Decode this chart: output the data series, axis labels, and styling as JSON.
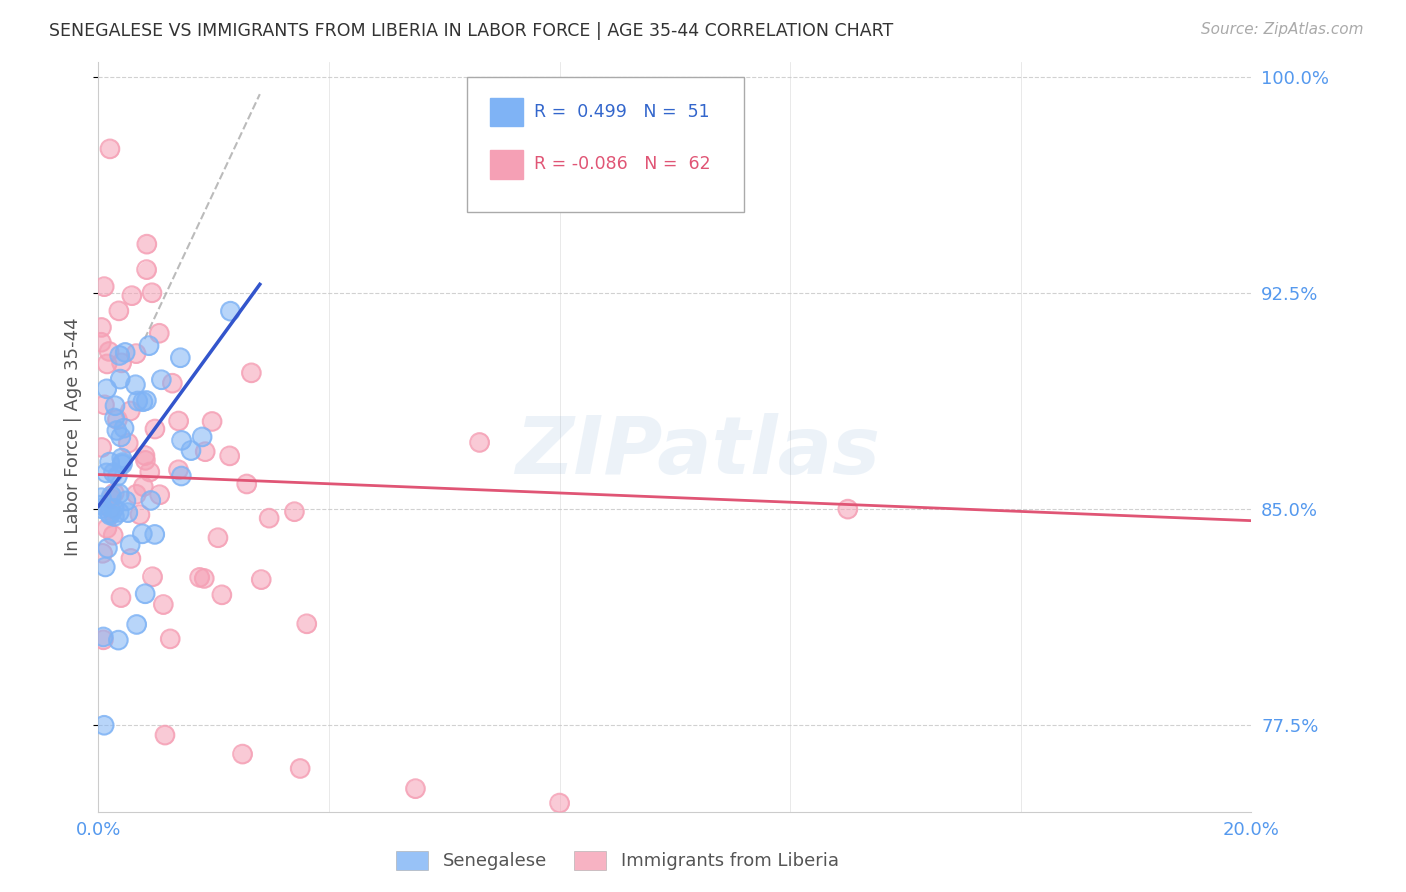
{
  "title": "SENEGALESE VS IMMIGRANTS FROM LIBERIA IN LABOR FORCE | AGE 35-44 CORRELATION CHART",
  "source": "Source: ZipAtlas.com",
  "ylabel": "In Labor Force | Age 35-44",
  "xlim": [
    0.0,
    0.2
  ],
  "ylim": [
    0.745,
    1.005
  ],
  "yticks": [
    0.775,
    0.85,
    0.925,
    1.0
  ],
  "ytick_labels": [
    "77.5%",
    "85.0%",
    "92.5%",
    "100.0%"
  ],
  "xticks": [
    0.0,
    0.04,
    0.08,
    0.12,
    0.16,
    0.2
  ],
  "blue_R": 0.499,
  "blue_N": 51,
  "pink_R": -0.086,
  "pink_N": 62,
  "blue_color": "#7fb3f5",
  "pink_color": "#f5a0b5",
  "blue_line_color": "#3355cc",
  "pink_line_color": "#e05575",
  "watermark": "ZIPatlas",
  "background_color": "#ffffff",
  "blue_line_x0": 0.0,
  "blue_line_y0": 0.851,
  "blue_line_x1": 0.028,
  "blue_line_y1": 0.928,
  "pink_line_x0": 0.0,
  "pink_line_y0": 0.862,
  "pink_line_x1": 0.2,
  "pink_line_y1": 0.846,
  "dash_line_x0": 0.008,
  "dash_line_y0": 0.875,
  "dash_line_x1": 0.028,
  "dash_line_y1": 0.96
}
